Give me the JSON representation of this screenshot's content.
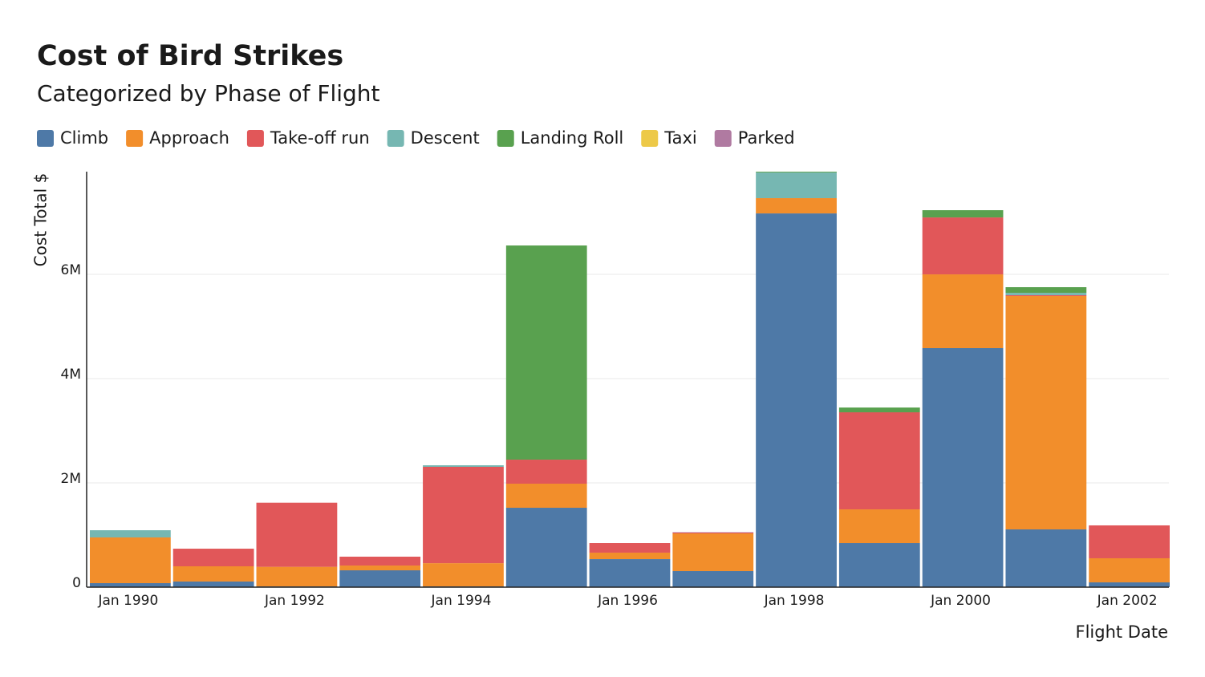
{
  "chart_data": {
    "type": "stacked-bar",
    "title": "Cost of Bird Strikes",
    "subtitle": "Categorized by Phase of Flight",
    "y_label": "Cost Total $",
    "x_label": "Flight Date",
    "categories": [
      "Jan 1990",
      null,
      "Jan 1992",
      null,
      "Jan 1994",
      null,
      "Jan 1996",
      null,
      "Jan 1998",
      null,
      "Jan 2000",
      null,
      "Jan 2002"
    ],
    "series": [
      {
        "name": "Climb",
        "color": "#4e79a7",
        "values": [
          77000,
          108000,
          15000,
          323000,
          15000,
          1523000,
          538000,
          308000,
          7169000,
          846000,
          4585000,
          1108000,
          92000
        ]
      },
      {
        "name": "Approach",
        "color": "#f28e2b",
        "values": [
          877000,
          292000,
          375000,
          92000,
          445000,
          462000,
          124000,
          723000,
          293000,
          646000,
          1415000,
          4477000,
          462000
        ]
      },
      {
        "name": "Take-off run",
        "color": "#e15759",
        "values": [
          0,
          338000,
          1230000,
          170000,
          1848000,
          461000,
          184000,
          15000,
          0,
          1862000,
          1092000,
          15000,
          631000
        ]
      },
      {
        "name": "Descent",
        "color": "#76b7b2",
        "values": [
          138000,
          0,
          0,
          0,
          30000,
          0,
          0,
          0,
          492000,
          0,
          0,
          46000,
          0
        ]
      },
      {
        "name": "Landing Roll",
        "color": "#59a14f",
        "values": [
          0,
          0,
          0,
          0,
          0,
          4108000,
          0,
          0,
          15000,
          92000,
          139000,
          108000,
          0
        ]
      },
      {
        "name": "Taxi",
        "color": "#edc948",
        "values": [
          0,
          0,
          0,
          0,
          0,
          0,
          0,
          0,
          0,
          0,
          0,
          0,
          0
        ]
      },
      {
        "name": "Parked",
        "color": "#b07aa1",
        "values": [
          0,
          0,
          0,
          0,
          0,
          0,
          0,
          8000,
          0,
          0,
          0,
          0,
          0
        ]
      }
    ],
    "ylim": [
      0,
      7970000
    ],
    "yticks": [
      0,
      {
        "value": 2000000,
        "label": "2M"
      },
      {
        "value": 4000000,
        "label": "4M"
      },
      {
        "value": 6000000,
        "label": "6M"
      }
    ],
    "grid": true
  }
}
